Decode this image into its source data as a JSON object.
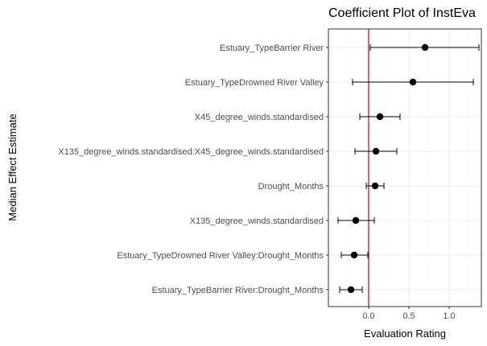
{
  "chart_data": {
    "type": "scatter",
    "title": "Coefficient Plot of InstEva",
    "xlabel": "Evaluation Rating",
    "ylabel": "Median Effect Estimate",
    "xlim": [
      -0.5,
      1.4
    ],
    "x_ticks": [
      0.0,
      0.5,
      1.0
    ],
    "x_tick_labels": [
      "0.0",
      "0.5",
      "1.0"
    ],
    "reference_line": {
      "x": 0,
      "color": "#cc0000"
    },
    "grid": true,
    "legend": "none",
    "terms": [
      {
        "label": "Estuary_TypeBarrier River",
        "estimate": 0.7,
        "lower": 0.02,
        "upper": 1.37
      },
      {
        "label": "Estuary_TypeDrowned River Valley",
        "estimate": 0.55,
        "lower": -0.2,
        "upper": 1.3
      },
      {
        "label": "X45_degree_winds.standardised",
        "estimate": 0.14,
        "lower": -0.11,
        "upper": 0.39
      },
      {
        "label": "X135_degree_winds.standardised:X45_degree_winds.standardised",
        "estimate": 0.09,
        "lower": -0.17,
        "upper": 0.35
      },
      {
        "label": "Drought_Months",
        "estimate": 0.08,
        "lower": -0.03,
        "upper": 0.19
      },
      {
        "label": "X135_degree_winds.standardised",
        "estimate": -0.16,
        "lower": -0.38,
        "upper": 0.07
      },
      {
        "label": "Estuary_TypeDrowned River Valley:Drought_Months",
        "estimate": -0.18,
        "lower": -0.34,
        "upper": -0.01
      },
      {
        "label": "Estuary_TypeBarrier River:Drought_Months",
        "estimate": -0.22,
        "lower": -0.36,
        "upper": -0.08
      }
    ]
  }
}
